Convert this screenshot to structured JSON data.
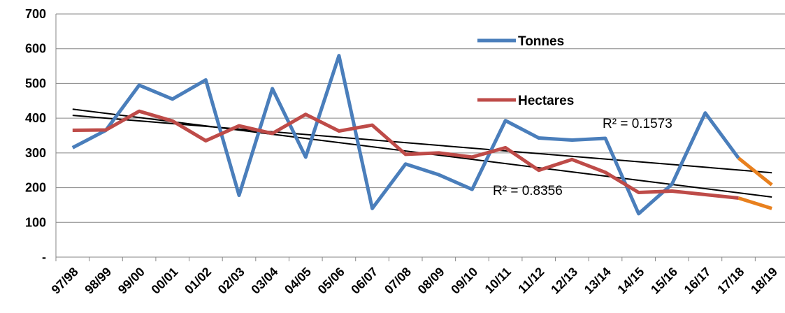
{
  "chart_data": {
    "type": "line",
    "categories": [
      "97/98",
      "98/99",
      "99/00",
      "00/01",
      "01/02",
      "02/03",
      "03/04",
      "04/05",
      "05/06",
      "06/07",
      "07/08",
      "08/09",
      "09/10",
      "10/11",
      "11/12",
      "12/13",
      "13/14",
      "14/15",
      "15/16",
      "16/17",
      "17/18",
      "18/19"
    ],
    "series": [
      {
        "name": "Tonnes",
        "color": "#4a7ebb",
        "values": [
          315,
          365,
          495,
          455,
          510,
          178,
          485,
          288,
          580,
          140,
          268,
          237,
          195,
          393,
          343,
          337,
          342,
          125,
          210,
          415,
          285,
          208
        ]
      },
      {
        "name": "Hectares",
        "color": "#be4b48",
        "values": [
          365,
          366,
          420,
          392,
          335,
          378,
          356,
          411,
          363,
          380,
          296,
          300,
          288,
          315,
          250,
          281,
          244,
          186,
          190,
          180,
          170,
          140
        ]
      }
    ],
    "forecast_color": "#e8801e",
    "forecast_from_index": 20,
    "trendlines": [
      {
        "series": "Tonnes",
        "start": 408,
        "end": 243,
        "r2_label": "R² = 0.1573"
      },
      {
        "series": "Hectares",
        "start": 426,
        "end": 173,
        "r2_label": "R² = 0.8356"
      }
    ],
    "y_ticks": [
      {
        "value": 0,
        "label": "-"
      },
      {
        "value": 100,
        "label": "100"
      },
      {
        "value": 200,
        "label": "200"
      },
      {
        "value": 300,
        "label": "300"
      },
      {
        "value": 400,
        "label": "400"
      },
      {
        "value": 500,
        "label": "500"
      },
      {
        "value": 600,
        "label": "600"
      },
      {
        "value": 700,
        "label": "700"
      }
    ],
    "ylim": [
      0,
      700
    ],
    "grid": true,
    "legend_placement": "inside-upper-right"
  }
}
